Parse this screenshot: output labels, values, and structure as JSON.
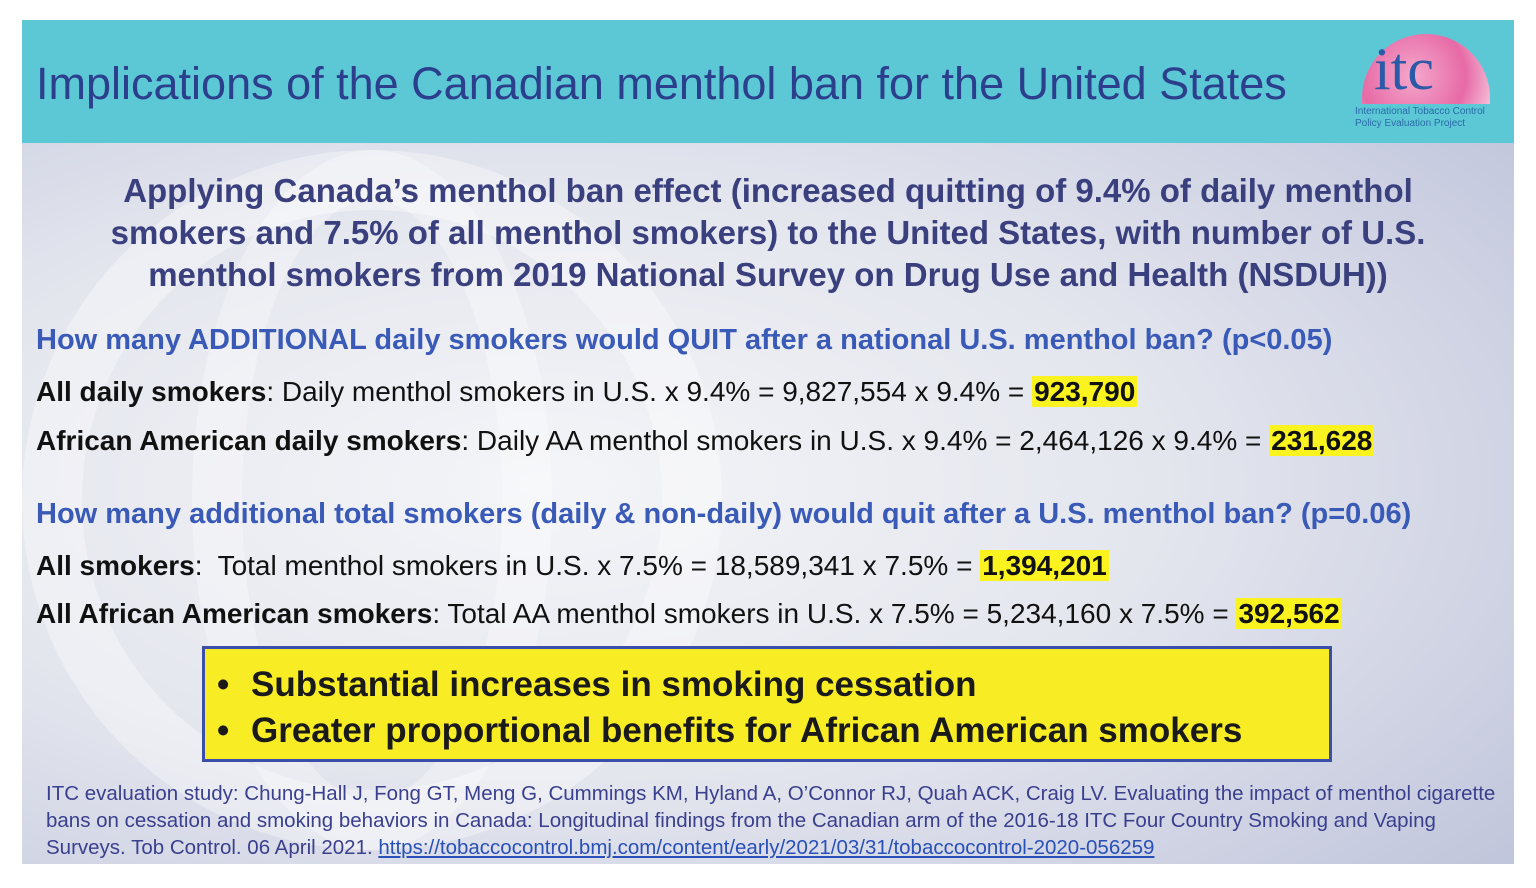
{
  "header": {
    "title": "Implications of the Canadian menthol ban for the United States",
    "logo": {
      "text": "itc",
      "subtitle_line1": "International Tobacco Control",
      "subtitle_line2": "Policy Evaluation Project"
    }
  },
  "subtitle": "Applying Canada’s menthol ban effect (increased quitting of 9.4% of daily menthol smokers and 7.5% of all menthol smokers) to the United States, with number of U.S. menthol smokers from 2019 National Survey on Drug Use and Health (NSDUH))",
  "section1": {
    "question": "How many ADDITIONAL daily smokers would QUIT after a national U.S. menthol ban? (p<0.05)",
    "rows": [
      {
        "label": "All daily smokers",
        "formula": ": Daily menthol smokers in U.S. x 9.4% = 9,827,554 x 9.4% = ",
        "result": "923,790"
      },
      {
        "label": "African American daily smokers",
        "formula": ": Daily AA menthol smokers in U.S. x 9.4% = 2,464,126 x 9.4% = ",
        "result": "231,628"
      }
    ]
  },
  "section2": {
    "question": "How many additional total smokers (daily & non-daily) would quit after a U.S. menthol ban? (p=0.06)",
    "rows": [
      {
        "label": "All smokers",
        "formula": ":  Total menthol smokers in U.S. x 7.5% = 18,589,341 x 7.5% = ",
        "result": "1,394,201"
      },
      {
        "label": "All African American smokers",
        "formula": ": Total AA menthol smokers in U.S. x 7.5% = 5,234,160 x 7.5% = ",
        "result": "392,562"
      }
    ]
  },
  "conclusions": {
    "bullet_char": "•",
    "items": [
      "Substantial increases in smoking cessation",
      "Greater proportional benefits for African American smokers"
    ]
  },
  "citation": {
    "text": "ITC evaluation study: Chung-Hall J, Fong GT, Meng G, Cummings KM, Hyland A, O’Connor RJ, Quah ACK, Craig LV. Evaluating the impact of menthol cigarette bans on cessation and smoking behaviors in Canada: Longitudinal findings from the Canadian arm of the 2016-18 ITC Four Country Smoking and Vaping Surveys. Tob Control. 06 April 2021. ",
    "link": "https://tobaccocontrol.bmj.com/content/early/2021/03/31/tobaccocontrol-2020-056259"
  },
  "colors": {
    "header_bg": "#5cc8d6",
    "title": "#2b3f8c",
    "question": "#3a5ab8",
    "highlight": "#fbf31f",
    "box_bg": "#f8ed25",
    "box_border": "#3b4fa8"
  }
}
